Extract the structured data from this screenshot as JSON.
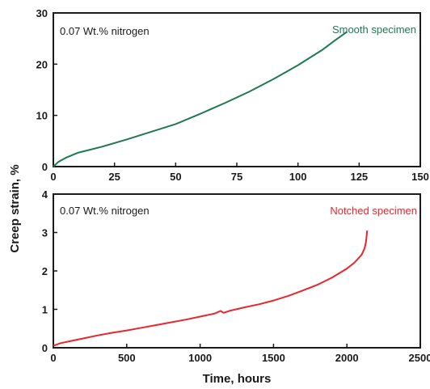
{
  "shared_ylabel": "Creep strain, %",
  "colors": {
    "smooth": "#1e7a4f",
    "notched": "#e8262c",
    "axis": "#1a1a1a"
  },
  "chart_data": [
    {
      "type": "line",
      "note": "0.07 Wt.% nitrogen",
      "xlabel": "",
      "ylabel": "Creep strain, %",
      "xlim": [
        0,
        150
      ],
      "ylim": [
        0,
        30
      ],
      "x_ticks": [
        0,
        25,
        50,
        75,
        100,
        125,
        150
      ],
      "y_ticks": [
        0,
        10,
        20,
        30
      ],
      "grid": false,
      "series": [
        {
          "name": "Smooth specimen",
          "color": "#1e7a4f",
          "x": [
            0,
            2,
            5,
            10,
            15,
            20,
            30,
            40,
            50,
            60,
            70,
            80,
            90,
            100,
            110,
            115,
            120
          ],
          "y": [
            0,
            0.9,
            1.7,
            2.7,
            3.3,
            3.9,
            5.3,
            6.8,
            8.3,
            10.3,
            12.4,
            14.6,
            17.1,
            19.8,
            22.8,
            24.6,
            26.3
          ]
        }
      ]
    },
    {
      "type": "line",
      "note": "0.07 Wt.% nitrogen",
      "xlabel": "Time, hours",
      "ylabel": "Creep strain, %",
      "xlim": [
        0,
        2500
      ],
      "ylim": [
        0,
        4
      ],
      "x_ticks": [
        0,
        500,
        1000,
        1500,
        2000,
        2500
      ],
      "y_ticks": [
        0,
        1,
        2,
        3,
        4
      ],
      "grid": false,
      "series": [
        {
          "name": "Notched specimen",
          "color": "#e8262c",
          "x": [
            0,
            50,
            100,
            200,
            300,
            400,
            500,
            600,
            700,
            800,
            900,
            1000,
            1100,
            1140,
            1150,
            1160,
            1200,
            1300,
            1400,
            1500,
            1600,
            1700,
            1800,
            1900,
            2000,
            2050,
            2100,
            2120,
            2130,
            2138
          ],
          "y": [
            0.05,
            0.12,
            0.16,
            0.24,
            0.32,
            0.39,
            0.45,
            0.52,
            0.59,
            0.66,
            0.73,
            0.81,
            0.89,
            0.96,
            0.93,
            0.91,
            0.96,
            1.05,
            1.13,
            1.23,
            1.35,
            1.49,
            1.64,
            1.83,
            2.06,
            2.21,
            2.42,
            2.58,
            2.75,
            3.05
          ]
        }
      ]
    }
  ]
}
